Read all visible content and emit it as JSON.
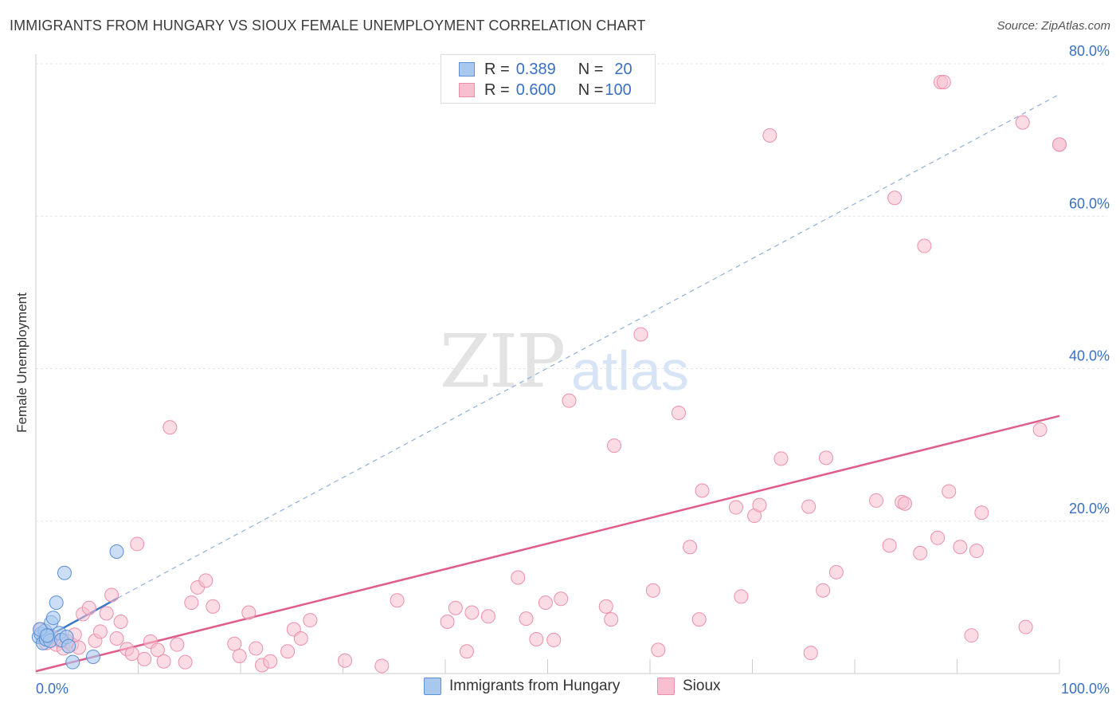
{
  "title": "IMMIGRANTS FROM HUNGARY VS SIOUX FEMALE UNEMPLOYMENT CORRELATION CHART",
  "source": "Source: ZipAtlas.com",
  "watermark": {
    "zip": "ZIP",
    "atlas": "atlas"
  },
  "legend_top": {
    "row1": {
      "r_label": "R = ",
      "r_value": "0.389",
      "n_label": "N = ",
      "n_value": "20"
    },
    "row2": {
      "r_label": "R = ",
      "r_value": "0.600",
      "n_label": "N = ",
      "n_value": "100"
    }
  },
  "legend_bottom": {
    "series1": "Immigrants from Hungary",
    "series2": "Sioux"
  },
  "colors": {
    "series1_fill": "#a9c8ee",
    "series1_stroke": "#5b8fd6",
    "series1_line": "#3a78c8",
    "series2_fill": "#f7bfd0",
    "series2_stroke": "#ec8fab",
    "series2_line": "#e05c8a",
    "tick_label": "#3a6fc4",
    "grid": "#e5e5e5"
  },
  "chart_data": {
    "type": "scatter",
    "title": "IMMIGRANTS FROM HUNGARY VS SIOUX FEMALE UNEMPLOYMENT CORRELATION CHART",
    "xlabel": "",
    "ylabel": "Female Unemployment",
    "xlim": [
      0,
      100
    ],
    "ylim": [
      0,
      80
    ],
    "x_tick_labels": [
      "0.0%",
      "100.0%"
    ],
    "y_ticks": [
      20,
      40,
      60,
      80
    ],
    "y_tick_labels": [
      "20.0%",
      "40.0%",
      "60.0%",
      "80.0%"
    ],
    "grid": true,
    "legend_position": "top-center",
    "series": [
      {
        "name": "Immigrants from Hungary",
        "R": 0.389,
        "N": 20,
        "trend": {
          "x0": 0,
          "y0": 4.0,
          "x1": 8,
          "y1": 9.9,
          "dashed_extension_to": [
            100,
            76.0
          ]
        },
        "points": [
          [
            0.3,
            4.8
          ],
          [
            0.5,
            5.2
          ],
          [
            0.7,
            4.0
          ],
          [
            0.9,
            5.6
          ],
          [
            1.0,
            4.5
          ],
          [
            1.2,
            4.9
          ],
          [
            1.4,
            4.3
          ],
          [
            1.5,
            6.7
          ],
          [
            1.7,
            7.3
          ],
          [
            2.0,
            9.3
          ],
          [
            2.3,
            5.3
          ],
          [
            2.5,
            4.4
          ],
          [
            2.8,
            13.2
          ],
          [
            3.0,
            4.8
          ],
          [
            3.2,
            3.6
          ],
          [
            3.6,
            1.5
          ],
          [
            5.6,
            2.2
          ],
          [
            7.9,
            16.0
          ],
          [
            0.4,
            5.8
          ],
          [
            1.1,
            5.0
          ]
        ]
      },
      {
        "name": "Sioux",
        "R": 0.6,
        "N": 100,
        "trend": {
          "x0": 0,
          "y0": 0.3,
          "x1": 100,
          "y1": 33.8
        },
        "points": [
          [
            0.5,
            5.8
          ],
          [
            0.8,
            5.0
          ],
          [
            1.0,
            4.0
          ],
          [
            1.3,
            4.6
          ],
          [
            1.6,
            4.8
          ],
          [
            2.0,
            3.8
          ],
          [
            2.4,
            4.3
          ],
          [
            2.7,
            3.3
          ],
          [
            3.1,
            4.2
          ],
          [
            3.5,
            3.8
          ],
          [
            3.8,
            5.1
          ],
          [
            4.2,
            3.4
          ],
          [
            4.6,
            7.8
          ],
          [
            5.2,
            8.6
          ],
          [
            5.8,
            4.3
          ],
          [
            6.3,
            5.5
          ],
          [
            6.9,
            7.9
          ],
          [
            7.4,
            10.3
          ],
          [
            7.9,
            4.6
          ],
          [
            8.3,
            6.8
          ],
          [
            8.9,
            3.2
          ],
          [
            9.4,
            2.6
          ],
          [
            9.9,
            17.0
          ],
          [
            10.6,
            1.9
          ],
          [
            11.2,
            4.2
          ],
          [
            11.9,
            3.1
          ],
          [
            12.5,
            1.6
          ],
          [
            13.1,
            32.3
          ],
          [
            13.8,
            3.8
          ],
          [
            14.6,
            1.5
          ],
          [
            15.2,
            9.3
          ],
          [
            15.8,
            11.3
          ],
          [
            16.6,
            12.2
          ],
          [
            17.3,
            8.8
          ],
          [
            19.4,
            3.9
          ],
          [
            19.9,
            2.3
          ],
          [
            20.8,
            8.0
          ],
          [
            21.5,
            3.3
          ],
          [
            22.1,
            1.1
          ],
          [
            22.9,
            1.6
          ],
          [
            24.6,
            2.9
          ],
          [
            25.2,
            5.8
          ],
          [
            25.9,
            4.6
          ],
          [
            26.8,
            7.0
          ],
          [
            30.2,
            1.7
          ],
          [
            33.8,
            1.0
          ],
          [
            35.3,
            9.6
          ],
          [
            40.2,
            6.8
          ],
          [
            41.0,
            8.6
          ],
          [
            42.1,
            2.9
          ],
          [
            42.6,
            8.0
          ],
          [
            44.2,
            7.5
          ],
          [
            47.1,
            12.6
          ],
          [
            47.9,
            7.2
          ],
          [
            48.9,
            4.5
          ],
          [
            49.8,
            9.3
          ],
          [
            50.6,
            4.4
          ],
          [
            51.3,
            9.8
          ],
          [
            52.1,
            35.8
          ],
          [
            55.7,
            8.8
          ],
          [
            56.2,
            7.1
          ],
          [
            56.5,
            29.9
          ],
          [
            59.1,
            44.5
          ],
          [
            60.3,
            10.9
          ],
          [
            60.8,
            3.1
          ],
          [
            62.8,
            34.2
          ],
          [
            63.9,
            16.6
          ],
          [
            64.8,
            7.1
          ],
          [
            65.1,
            24.0
          ],
          [
            68.4,
            21.8
          ],
          [
            68.9,
            10.1
          ],
          [
            70.2,
            20.7
          ],
          [
            70.7,
            22.1
          ],
          [
            71.7,
            70.6
          ],
          [
            72.8,
            28.2
          ],
          [
            75.5,
            21.9
          ],
          [
            75.7,
            2.7
          ],
          [
            76.9,
            10.9
          ],
          [
            77.2,
            28.3
          ],
          [
            78.2,
            13.3
          ],
          [
            82.1,
            22.7
          ],
          [
            83.4,
            16.8
          ],
          [
            83.9,
            62.4
          ],
          [
            84.6,
            22.5
          ],
          [
            84.9,
            22.3
          ],
          [
            86.4,
            15.8
          ],
          [
            86.8,
            56.1
          ],
          [
            88.1,
            17.8
          ],
          [
            88.4,
            77.6
          ],
          [
            88.7,
            77.6
          ],
          [
            89.2,
            23.9
          ],
          [
            90.3,
            16.6
          ],
          [
            91.4,
            5.0
          ],
          [
            91.9,
            16.1
          ],
          [
            92.4,
            21.1
          ],
          [
            96.4,
            72.3
          ],
          [
            96.7,
            6.1
          ],
          [
            98.1,
            32.0
          ],
          [
            100.0,
            69.4
          ],
          [
            100.0,
            69.4
          ]
        ]
      }
    ]
  }
}
